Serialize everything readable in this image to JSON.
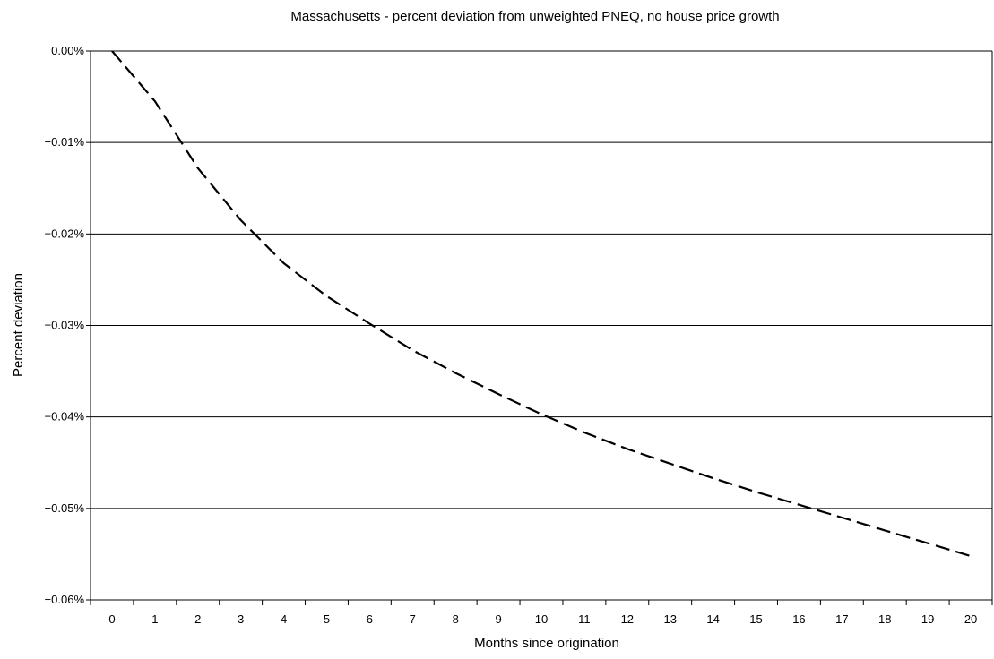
{
  "chart_data": {
    "type": "line",
    "title": "Massachusetts - percent deviation from unweighted PNEQ, no house price growth",
    "xlabel": "Months since origination",
    "ylabel": "Percent deviation",
    "x_ticks": [
      "0",
      "1",
      "2",
      "3",
      "4",
      "5",
      "6",
      "7",
      "8",
      "9",
      "10",
      "11",
      "12",
      "13",
      "14",
      "15",
      "16",
      "17",
      "18",
      "19",
      "20"
    ],
    "y_ticks": [
      "0.00%",
      "−0.01%",
      "−0.02%",
      "−0.03%",
      "−0.04%",
      "−0.05%",
      "−0.06%"
    ],
    "xlim": [
      -0.5,
      20.5
    ],
    "ylim": [
      -0.06,
      0.0
    ],
    "grid": "horizontal",
    "line_style": "dashed",
    "series": [
      {
        "x": [
          0,
          1,
          2,
          3,
          4,
          5,
          6,
          7,
          8,
          9,
          10,
          11,
          12,
          13,
          14,
          15,
          16,
          17,
          18,
          19,
          20
        ],
        "values": [
          0.0,
          -0.0055,
          -0.0128,
          -0.0185,
          -0.0232,
          -0.0268,
          -0.0298,
          -0.0327,
          -0.0352,
          -0.0375,
          -0.0397,
          -0.0417,
          -0.0435,
          -0.0451,
          -0.0467,
          -0.0482,
          -0.0496,
          -0.051,
          -0.0524,
          -0.0538,
          -0.0552
        ]
      }
    ]
  }
}
